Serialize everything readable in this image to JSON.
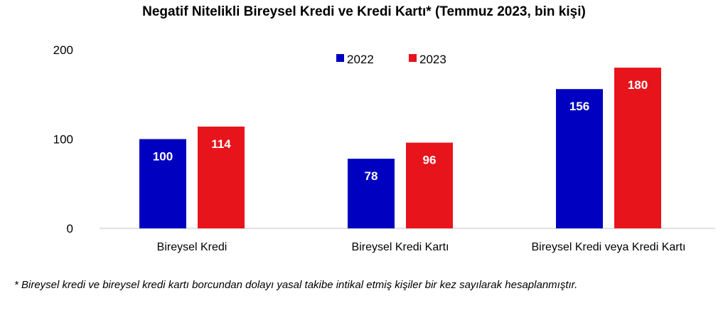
{
  "chart_data": {
    "type": "bar",
    "title": "Negatif Nitelikli Bireysel Kredi ve Kredi Kartı*  (Temmuz 2023, bin kişi)",
    "categories": [
      "Bireysel Kredi",
      "Bireysel Kredi Kartı",
      "Bireysel Kredi veya Kredi Kartı"
    ],
    "series": [
      {
        "name": "2022",
        "color": "#0000c0",
        "values": [
          100,
          78,
          156
        ]
      },
      {
        "name": "2023",
        "color": "#e8141b",
        "values": [
          114,
          96,
          180
        ]
      }
    ],
    "yticks": [
      "0",
      "100",
      "200"
    ],
    "ylim": [
      0,
      200
    ],
    "grid": false,
    "legend_position": "top-center"
  },
  "footnote": "* Bireysel kredi ve bireysel kredi kartı borcundan dolayı yasal takibe intikal etmiş kişiler bir kez sayılarak hesaplanmıştır."
}
